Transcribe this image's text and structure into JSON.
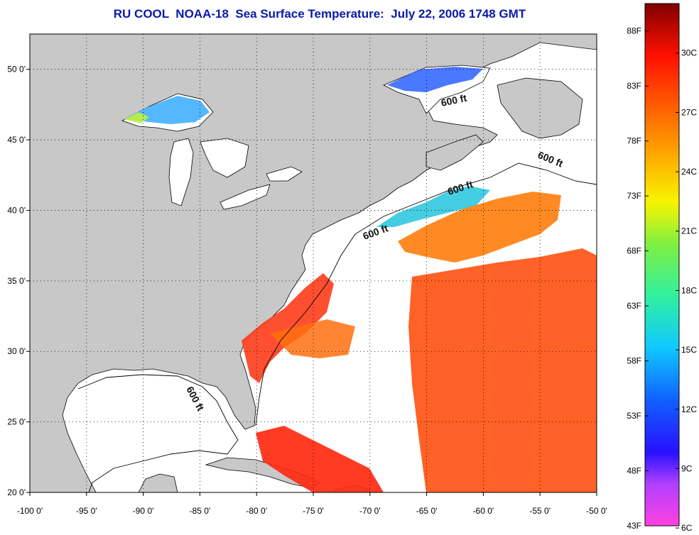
{
  "title": "RU COOL  NOAA-18  Sea Surface Temperature:  July 22, 2006 1748 GMT",
  "map": {
    "lon_range": [
      -100,
      -50
    ],
    "lat_range": [
      20,
      52.5
    ],
    "lon_ticks": [
      "-100 0'",
      "-95 0'",
      "-90 0'",
      "-85 0'",
      "-80 0'",
      "-75 0'",
      "-70 0'",
      "-65 0'",
      "-60 0'",
      "-55 0'",
      "-50 0'"
    ],
    "lat_ticks": [
      "50 0'",
      "45 0'",
      "40 0'",
      "35 0'",
      "30 0'",
      "25 0'",
      "20 0'"
    ],
    "grid": "dotted",
    "contour_labels": [
      "600 ft",
      "600 ft",
      "600 ft",
      "600 ft",
      "600 ft"
    ],
    "colors": {
      "land": "#c8c8c8",
      "cloud": "#ffffff",
      "coast": "#000000"
    }
  },
  "colorbar": {
    "fahrenheit": [
      "88F",
      "83F",
      "78F",
      "73F",
      "68F",
      "63F",
      "58F",
      "53F",
      "48F",
      "43F"
    ],
    "celsius": [
      "30C",
      "27C",
      "24C",
      "21C",
      "18C",
      "15C",
      "12C",
      "9C",
      "6C"
    ]
  }
}
